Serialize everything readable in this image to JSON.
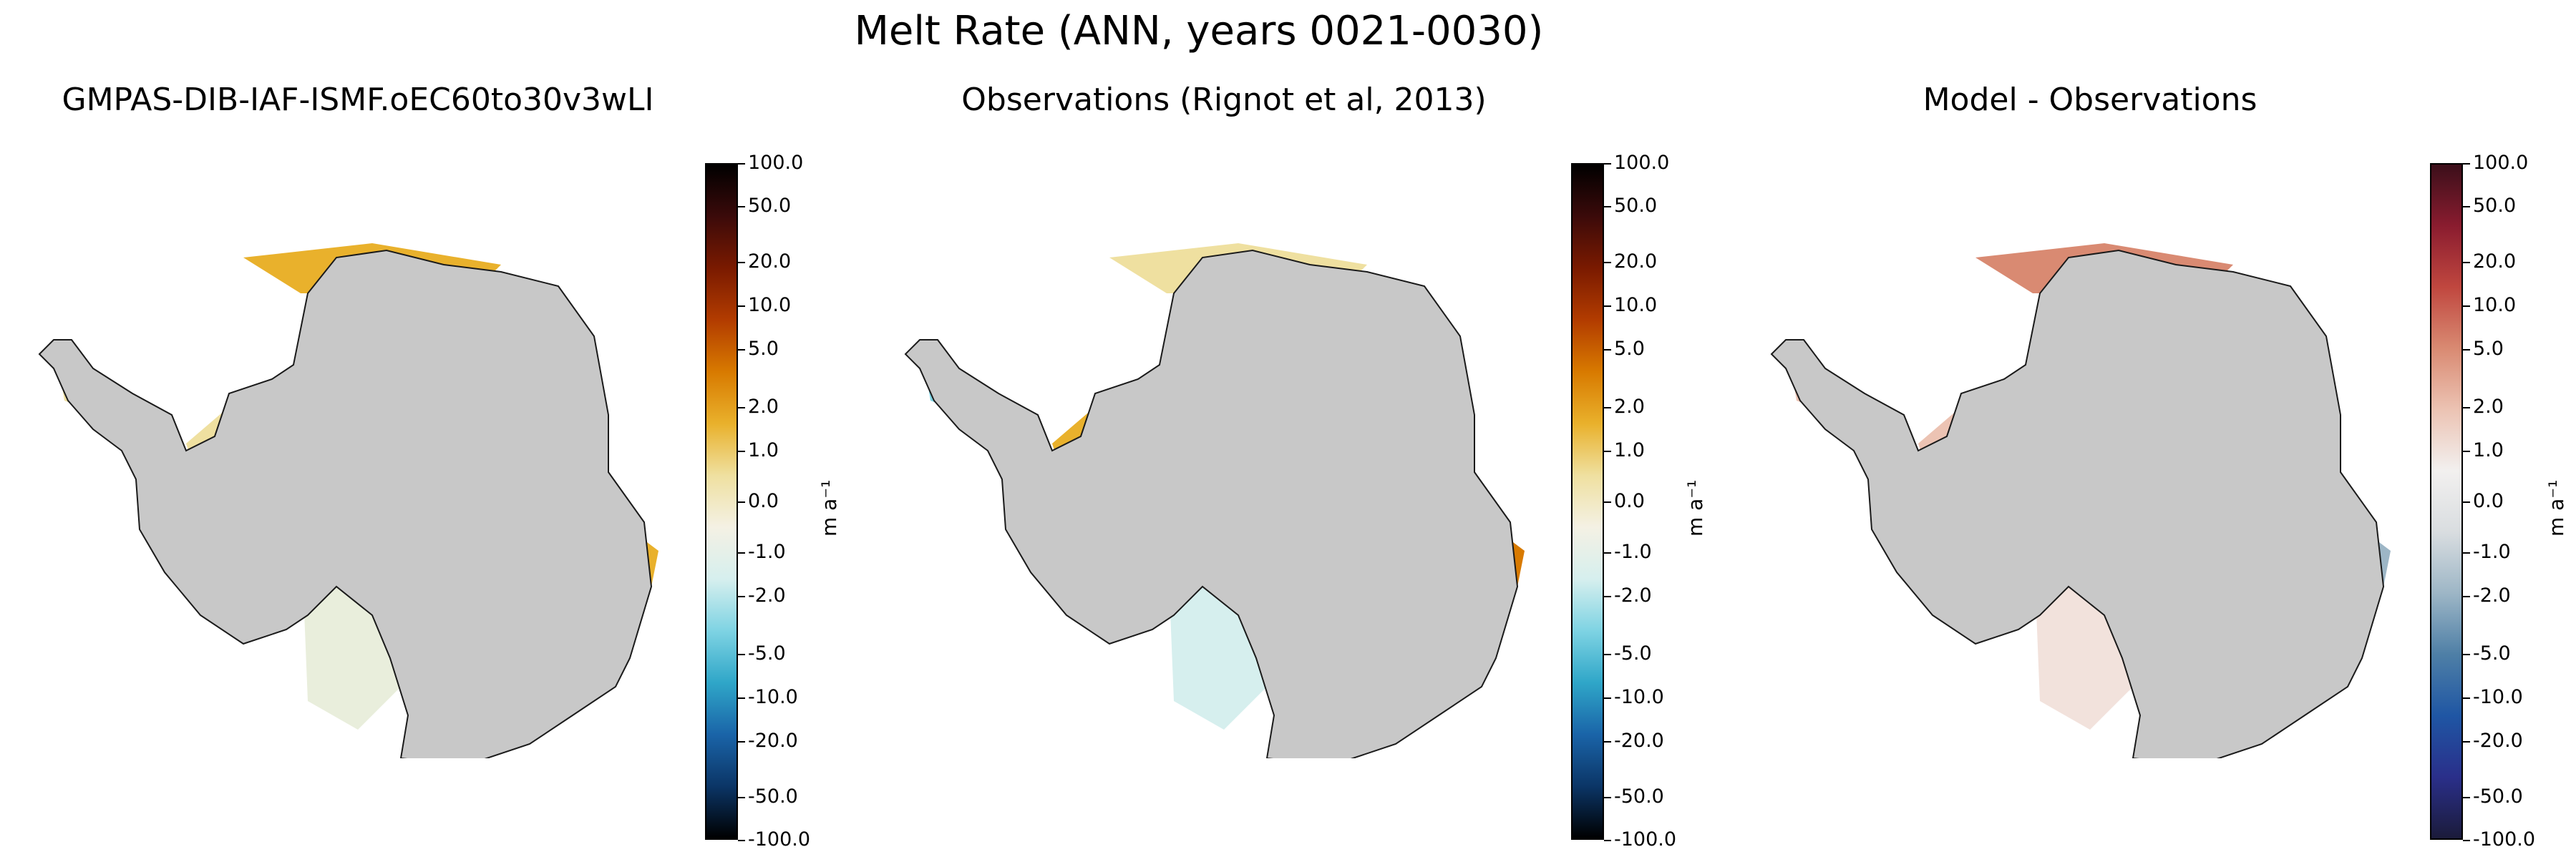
{
  "figure": {
    "title": "Melt Rate (ANN, years 0021-0030)"
  },
  "panels": [
    {
      "title": "GMPAS-DIB-IAF-ISMF.oEC60to30v3wLI",
      "colormap": "melt"
    },
    {
      "title": "Observations (Rignot et al, 2013)",
      "colormap": "melt"
    },
    {
      "title": "Model - Observations",
      "colormap": "diff"
    }
  ],
  "colorbar": {
    "label": "m a⁻¹",
    "ticks": [
      "100.0",
      "50.0",
      "20.0",
      "10.0",
      "5.0",
      "2.0",
      "1.0",
      "0.0",
      "-1.0",
      "-2.0",
      "-5.0",
      "-10.0",
      "-20.0",
      "-50.0",
      "-100.0"
    ]
  },
  "colors": {
    "land": "#c8c8c8",
    "coast": "#1a1a1a",
    "melt_cmap": [
      "#000000",
      "#3b0a0a",
      "#7a1a00",
      "#b23c00",
      "#d87a00",
      "#e9b12c",
      "#efe0a0",
      "#f4f1e4",
      "#d6efee",
      "#7ed3e3",
      "#2fa6c8",
      "#1a64a8",
      "#0b3566",
      "#000000"
    ],
    "diff_cmap": [
      "#3b0f1a",
      "#8a1c2f",
      "#c0473f",
      "#d98a72",
      "#ecc3b3",
      "#f2f0ef",
      "#d9dde0",
      "#9db6c6",
      "#4e7fa6",
      "#1f56a4",
      "#2a2f8a",
      "#1b1b3a"
    ]
  }
}
